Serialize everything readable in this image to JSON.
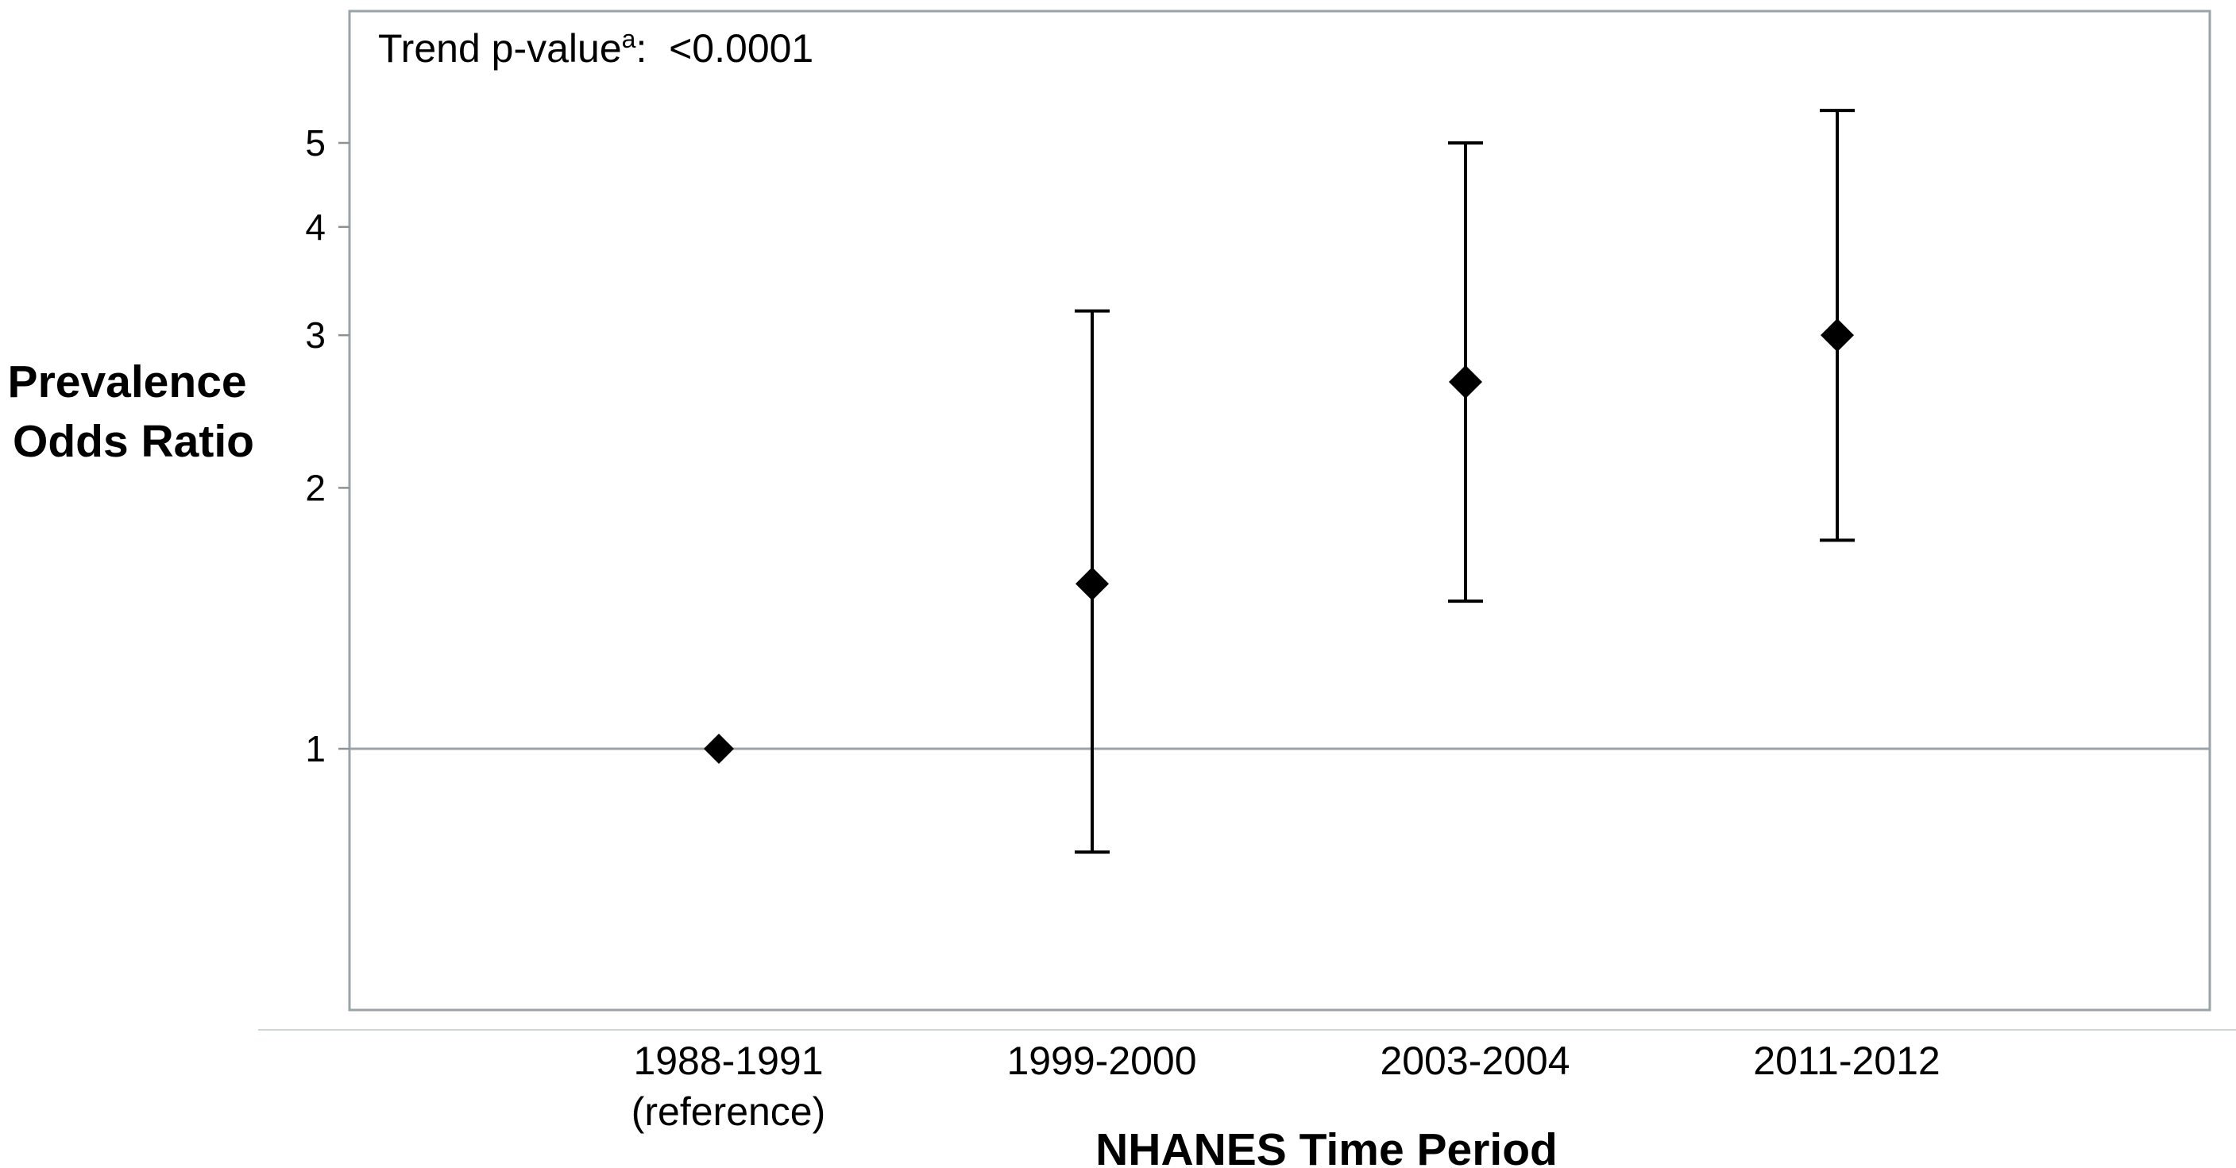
{
  "chart_data": {
    "type": "scatter",
    "title": "",
    "xlabel": "NHANES Time Period",
    "ylabel": [
      "Prevalence",
      "Odds Ratio"
    ],
    "y_scale": "log",
    "ylim": [
      0.63,
      7.2
    ],
    "yticks": [
      1,
      2,
      3,
      4,
      5
    ],
    "reference_line": 1,
    "grid": false,
    "annotation": {
      "text": "Trend p-value",
      "superscript": "a",
      "suffix": ":  <0.0001"
    },
    "categories": [
      {
        "lines": [
          "1988-1991",
          "(reference)"
        ]
      },
      {
        "lines": [
          "1999-2000"
        ]
      },
      {
        "lines": [
          "2003-2004"
        ]
      },
      {
        "lines": [
          "2011-2012"
        ]
      }
    ],
    "points": [
      {
        "or": 1.0,
        "lower": null,
        "upper": null
      },
      {
        "or": 1.55,
        "lower": 0.76,
        "upper": 3.2
      },
      {
        "or": 2.65,
        "lower": 1.48,
        "upper": 5.0
      },
      {
        "or": 3.0,
        "lower": 1.74,
        "upper": 5.45
      }
    ]
  }
}
